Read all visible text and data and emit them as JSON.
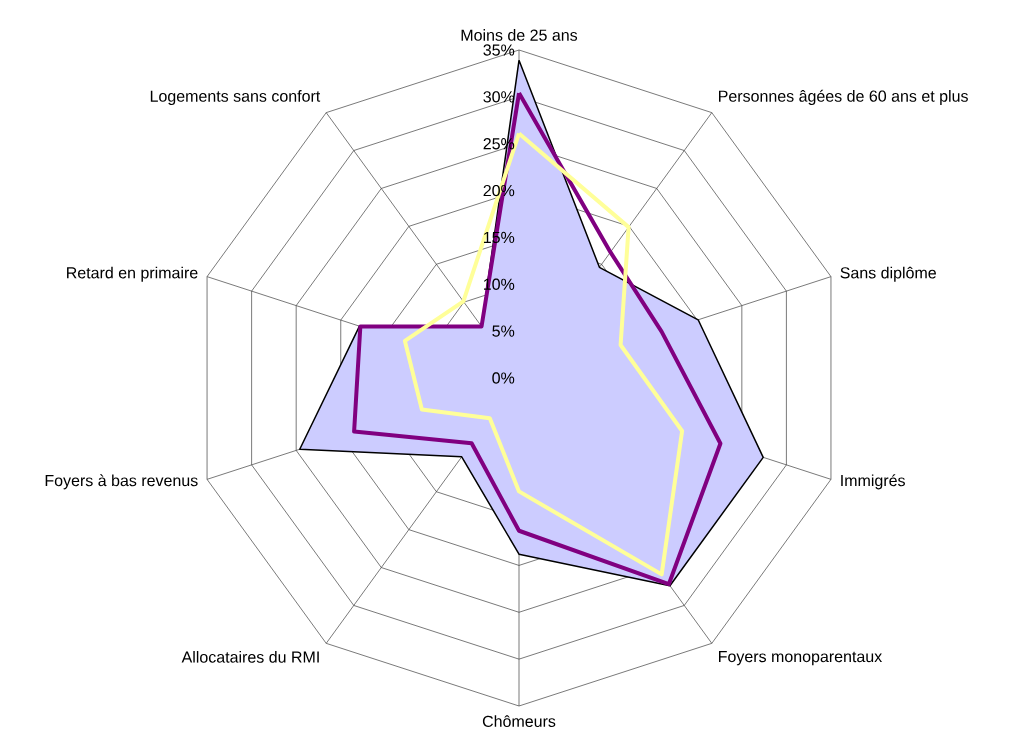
{
  "chart_data": {
    "type": "radar",
    "categories": [
      "Moins de 25 ans",
      "Personnes âgées de 60 ans et plus",
      "Sans diplôme",
      "Immigrés",
      "Foyers monoparentaux",
      "Chômeurs",
      "Allocataires du RMI",
      "Foyers à bas revenus",
      "Retard en primaire",
      "Logements sans confort"
    ],
    "series": [
      {
        "type": "area",
        "color": "#ccccff",
        "values": [
          33.9,
          14.6,
          20.1,
          27.4,
          27.4,
          18.8,
          10.4,
          24.6,
          17.9,
          6.8
        ]
      },
      {
        "color": "#800080",
        "values": [
          30.4,
          16.6,
          16.0,
          22.6,
          27.2,
          16.3,
          8.6,
          18.5,
          17.8,
          6.8
        ]
      },
      {
        "color": "#ffff99",
        "values": [
          26.1,
          19.9,
          11.4,
          18.3,
          25.9,
          12.1,
          5.3,
          10.9,
          12.8,
          10.1
        ]
      }
    ],
    "ylim": [
      0,
      35
    ],
    "yticks": [
      {
        "value": 0,
        "label": "0%"
      },
      {
        "value": 5,
        "label": "5%"
      },
      {
        "value": 10,
        "label": "10%"
      },
      {
        "value": 15,
        "label": "15%"
      },
      {
        "value": 20,
        "label": "20%"
      },
      {
        "value": 25,
        "label": "25%"
      },
      {
        "value": 30,
        "label": "30%"
      },
      {
        "value": 35,
        "label": "35%"
      }
    ],
    "grid": true
  }
}
